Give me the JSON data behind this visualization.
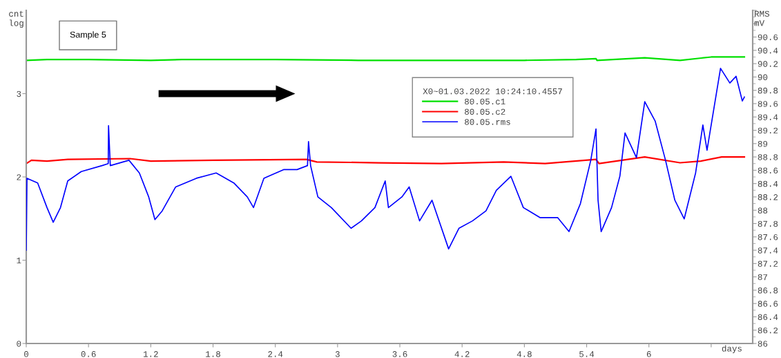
{
  "chart_data": {
    "type": "line",
    "ylabel": "cnt\nlog",
    "y2label": "RMS\nmV",
    "xlabel": "days",
    "legend_title": "X0~01.03.2022 10:24:10.4557",
    "annotations": [
      "Sample 5"
    ],
    "legend": "top right",
    "grid": false,
    "marker": "none",
    "line_style": "solid",
    "xlim": [
      0,
      7
    ],
    "xticks": [
      0,
      0.6,
      1.2,
      1.8,
      2.4,
      3,
      3.6,
      4.2,
      4.8,
      5.4,
      6,
      {
        "value": 6.6,
        "label": null
      }
    ],
    "ylim": [
      0,
      4
    ],
    "yticks": [
      0,
      1,
      2,
      3
    ],
    "y2lim": [
      86,
      91
    ],
    "y2ticks": [
      86,
      86.2,
      86.4,
      86.6,
      86.8,
      87,
      87.2,
      87.4,
      87.6,
      87.8,
      88,
      88.2,
      88.4,
      88.6,
      88.8,
      89,
      89.2,
      89.4,
      89.6,
      89.8,
      90,
      90.2,
      90.4,
      90.6,
      {
        "value": 90.8,
        "label": null
      },
      {
        "value": 91,
        "label": null
      }
    ],
    "series": [
      {
        "name": "80.05.c1",
        "color": "#00e000",
        "x": [
          0,
          0.2,
          0.6,
          1.2,
          1.5,
          2.4,
          3.2,
          4.0,
          4.8,
          5.3,
          5.49,
          5.5,
          5.96,
          6.3,
          6.6,
          6.92
        ],
        "values": [
          3.4,
          3.41,
          3.41,
          3.4,
          3.41,
          3.41,
          3.4,
          3.4,
          3.4,
          3.41,
          3.42,
          3.4,
          3.43,
          3.4,
          3.44,
          3.44
        ]
      },
      {
        "name": "80.05.c2",
        "color": "#ff0000",
        "x": [
          0,
          0.05,
          0.2,
          0.4,
          1.0,
          1.2,
          1.8,
          2.7,
          2.8,
          3.4,
          4.0,
          4.6,
          5.0,
          5.49,
          5.52,
          5.96,
          6.3,
          6.5,
          6.7,
          6.92
        ],
        "values": [
          2.16,
          2.2,
          2.19,
          2.21,
          2.22,
          2.19,
          2.2,
          2.21,
          2.18,
          2.17,
          2.16,
          2.18,
          2.16,
          2.21,
          2.16,
          2.24,
          2.17,
          2.19,
          2.24,
          2.24
        ]
      },
      {
        "name": "80.05.rms",
        "color": "#0000ff",
        "axis": "y2",
        "x": [
          0,
          0.007,
          0.11,
          0.2,
          0.26,
          0.33,
          0.4,
          0.53,
          0.73,
          0.79,
          0.793,
          0.81,
          0.99,
          1.09,
          1.18,
          1.24,
          1.31,
          1.44,
          1.64,
          1.83,
          2.0,
          2.13,
          2.19,
          2.29,
          2.48,
          2.61,
          2.71,
          2.72,
          2.74,
          2.81,
          2.94,
          3.13,
          3.23,
          3.36,
          3.459,
          3.49,
          3.62,
          3.69,
          3.79,
          3.91,
          4.07,
          4.17,
          4.3,
          4.43,
          4.53,
          4.67,
          4.79,
          4.95,
          5.12,
          5.23,
          5.34,
          5.44,
          5.49,
          5.51,
          5.54,
          5.64,
          5.72,
          5.77,
          5.88,
          5.96,
          6.06,
          6.16,
          6.25,
          6.34,
          6.45,
          6.52,
          6.56,
          6.69,
          6.78,
          6.84,
          6.9,
          6.92
        ],
        "values": [
          87.4,
          88.48,
          88.41,
          88.04,
          87.82,
          88.04,
          88.44,
          88.58,
          88.67,
          88.7,
          89.27,
          88.67,
          88.75,
          88.56,
          88.2,
          87.86,
          87.99,
          88.35,
          88.48,
          88.56,
          88.41,
          88.2,
          88.04,
          88.48,
          88.61,
          88.61,
          88.67,
          89.03,
          88.67,
          88.2,
          88.04,
          87.73,
          87.84,
          88.04,
          88.44,
          88.04,
          88.2,
          88.35,
          87.84,
          88.15,
          87.42,
          87.73,
          87.84,
          87.99,
          88.3,
          88.51,
          88.04,
          87.89,
          87.89,
          87.68,
          88.1,
          88.75,
          89.22,
          88.15,
          87.68,
          88.04,
          88.51,
          89.16,
          88.79,
          89.63,
          89.34,
          88.75,
          88.15,
          87.87,
          88.56,
          89.28,
          88.9,
          90.13,
          89.91,
          90.01,
          89.64,
          89.7
        ]
      }
    ]
  }
}
